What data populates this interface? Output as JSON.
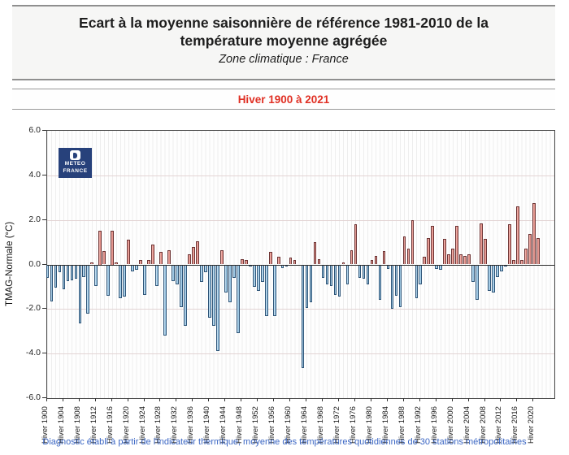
{
  "header": {
    "title": "Ecart à la moyenne saisonnière  de référence 1981-2010  de la température moyenne  agrégée",
    "subtitle": "Zone climatique : France",
    "period": "Hiver 1900 à 2021",
    "period_color": "#e03024"
  },
  "logo": {
    "line1": "METEO",
    "line2": "FRANCE",
    "bg_color": "#27417b"
  },
  "chart_data": {
    "type": "bar",
    "title": "Ecart à la moyenne saisonnière de référence 1981-2010 de la température moyenne agrégée — Zone climatique : France",
    "xlabel": "",
    "ylabel": "TMAG-Normale (°C)",
    "ylim": [
      -6,
      6
    ],
    "y_tick_labels": [
      "6.0",
      "4.0",
      "2.0",
      "0.0",
      "-2.0",
      "-4.0",
      "-6.0"
    ],
    "grid": "on",
    "legend": "none",
    "positive_color": "#e89a92",
    "negative_color": "#a9cfe9",
    "start_year": 1900,
    "end_year": 2021,
    "x_tick_step": 4,
    "x_tick_labels": [
      "Hiver 1900",
      "Hiver 1904",
      "Hiver 1908",
      "Hiver 1912",
      "Hiver 1916",
      "Hiver 1920",
      "Hiver 1924",
      "Hiver 1928",
      "Hiver 1932",
      "Hiver 1936",
      "Hiver 1940",
      "Hiver 1944",
      "Hiver 1948",
      "Hiver 1952",
      "Hiver 1956",
      "Hiver 1960",
      "Hiver 1964",
      "Hiver 1968",
      "Hiver 1972",
      "Hiver 1976",
      "Hiver 1980",
      "Hiver 1984",
      "Hiver 1988",
      "Hiver 1992",
      "Hiver 1996",
      "Hiver 2000",
      "Hiver 2004",
      "Hiver 2008",
      "Hiver 2012",
      "Hiver 2016",
      "Hiver 2020"
    ],
    "values": [
      -0.6,
      -1.65,
      -1.05,
      -0.35,
      -1.1,
      -0.75,
      -0.7,
      -0.65,
      -2.65,
      -0.55,
      -2.2,
      0.1,
      -0.95,
      1.5,
      0.6,
      -1.4,
      1.5,
      0.1,
      -1.5,
      -1.45,
      1.1,
      -0.3,
      -0.25,
      0.2,
      -1.35,
      0.2,
      0.9,
      -0.95,
      0.55,
      -3.2,
      0.65,
      -0.75,
      -0.9,
      -1.9,
      -2.75,
      0.45,
      0.8,
      1.05,
      -0.8,
      -0.35,
      -2.4,
      -2.75,
      -3.9,
      0.65,
      -1.25,
      -1.7,
      -0.6,
      -3.1,
      0.25,
      0.2,
      -0.1,
      -1.0,
      -1.2,
      -0.8,
      -2.3,
      0.55,
      -2.3,
      0.35,
      -0.15,
      -0.1,
      0.3,
      0.2,
      -0.05,
      -4.65,
      -1.95,
      -1.7,
      1.0,
      0.25,
      -0.6,
      -0.9,
      -0.95,
      -1.35,
      -1.45,
      0.1,
      -0.9,
      0.65,
      1.8,
      -0.6,
      -0.65,
      -0.9,
      0.2,
      0.4,
      -1.6,
      0.6,
      -0.2,
      -2.0,
      -1.4,
      -1.9,
      1.25,
      0.7,
      2.0,
      -1.5,
      -0.9,
      0.35,
      1.2,
      1.75,
      -0.2,
      -0.25,
      1.15,
      0.45,
      0.7,
      1.75,
      0.45,
      0.4,
      0.45,
      -0.8,
      -1.6,
      1.85,
      1.15,
      -1.2,
      -1.25,
      -0.55,
      -0.3,
      -0.1,
      1.8,
      0.2,
      2.6,
      0.2,
      0.7,
      1.35,
      2.75,
      1.2
    ]
  },
  "footer": {
    "caption": "Diagnostic établi à partir de l'indicateur thermique, moyenne des températures quotidiennes de 30 stations métropolitaines",
    "color": "#3a66c4"
  }
}
